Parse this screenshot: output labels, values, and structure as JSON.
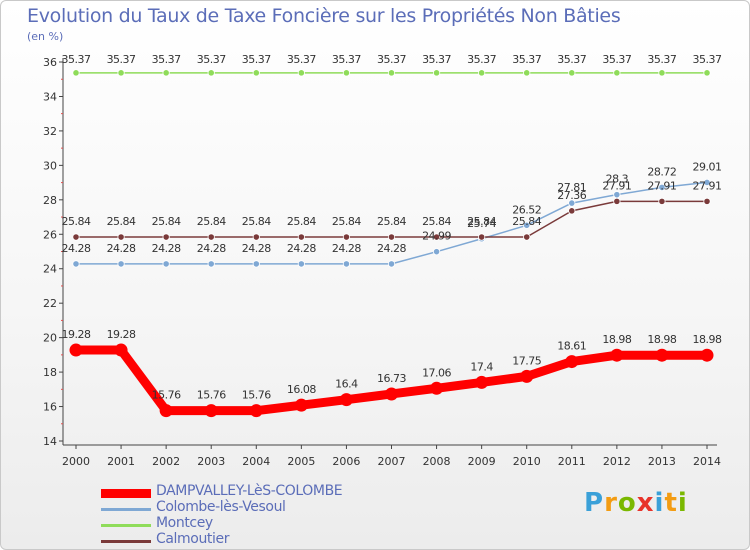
{
  "title": "Evolution du Taux de Taxe Foncière sur les Propriétés Non Bâties",
  "unit_label": "(en %)",
  "logo": {
    "text": "Proxiti",
    "colors": [
      "#3aa0d8",
      "#f39c12",
      "#7ab800",
      "#e8332a",
      "#3aa0d8",
      "#f39c12",
      "#7ab800"
    ]
  },
  "chart_data": {
    "type": "line",
    "title": "Evolution du Taux de Taxe Foncière sur les Propriétés Non Bâties",
    "ylabel": "(en %)",
    "xlabel": "",
    "x": [
      2000,
      2001,
      2002,
      2003,
      2004,
      2005,
      2006,
      2007,
      2008,
      2009,
      2010,
      2011,
      2012,
      2013,
      2014
    ],
    "ylim": [
      14,
      36
    ],
    "yticks": [
      14,
      16,
      18,
      20,
      22,
      24,
      26,
      28,
      30,
      32,
      34,
      36
    ],
    "grid": false,
    "legend_position": "bottom-left",
    "series": [
      {
        "name": "DAMPVALLEY-LèS-COLOMBE",
        "color": "#ff0000",
        "labels": [
          "19.28",
          "19.28",
          "15.76",
          "15.76",
          "15.76",
          "16.08",
          "16.4",
          "16.73",
          "17.06",
          "17.4",
          "17.75",
          "18.61",
          "18.98",
          "18.98",
          "18.98"
        ],
        "values": [
          19.28,
          19.28,
          15.76,
          15.76,
          15.76,
          16.08,
          16.4,
          16.73,
          17.06,
          17.4,
          17.75,
          18.61,
          18.98,
          18.98,
          18.98
        ]
      },
      {
        "name": "Colombe-lès-Vesoul",
        "color": "#7fa8d4",
        "labels": [
          "24.28",
          "24.28",
          "24.28",
          "24.28",
          "24.28",
          "24.28",
          "24.28",
          "24.28",
          "24.99",
          "25.74",
          "26.52",
          "27.81",
          "28.3",
          "28.72",
          "29.01"
        ],
        "values": [
          24.28,
          24.28,
          24.28,
          24.28,
          24.28,
          24.28,
          24.28,
          24.28,
          24.99,
          25.74,
          26.52,
          27.81,
          28.3,
          28.72,
          29.01
        ]
      },
      {
        "name": "Montcey",
        "color": "#8fdc5a",
        "labels": [
          "35.37",
          "35.37",
          "35.37",
          "35.37",
          "35.37",
          "35.37",
          "35.37",
          "35.37",
          "35.37",
          "35.37",
          "35.37",
          "35.37",
          "35.37",
          "35.37",
          "35.37"
        ],
        "values": [
          35.37,
          35.37,
          35.37,
          35.37,
          35.37,
          35.37,
          35.37,
          35.37,
          35.37,
          35.37,
          35.37,
          35.37,
          35.37,
          35.37,
          35.37
        ]
      },
      {
        "name": "Calmoutier",
        "color": "#7a3a3a",
        "labels": [
          "25.84",
          "25.84",
          "25.84",
          "25.84",
          "25.84",
          "25.84",
          "25.84",
          "25.84",
          "25.84",
          "25.84",
          "25.84",
          "27.36",
          "27.91",
          "27.91",
          "27.91"
        ],
        "values": [
          25.84,
          25.84,
          25.84,
          25.84,
          25.84,
          25.84,
          25.84,
          25.84,
          25.84,
          25.84,
          25.84,
          27.36,
          27.91,
          27.91,
          27.91
        ]
      }
    ]
  }
}
